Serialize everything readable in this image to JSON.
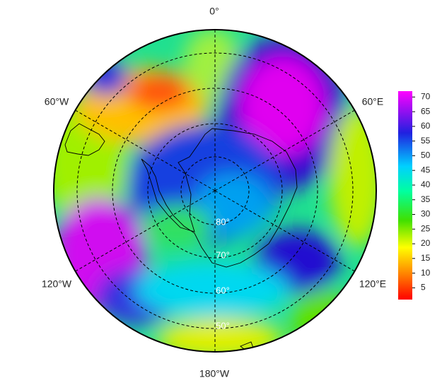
{
  "map": {
    "meridian_labels": [
      "0°",
      "60°E",
      "120°E",
      "180°W",
      "120°W",
      "60°W"
    ],
    "parallel_labels": [
      "80°",
      "70°",
      "60°",
      "50°"
    ],
    "colorbar": {
      "lim": [
        1,
        72
      ],
      "ticks": [
        5,
        10,
        15,
        20,
        25,
        30,
        35,
        40,
        45,
        50,
        55,
        60,
        65,
        70
      ]
    }
  }
}
